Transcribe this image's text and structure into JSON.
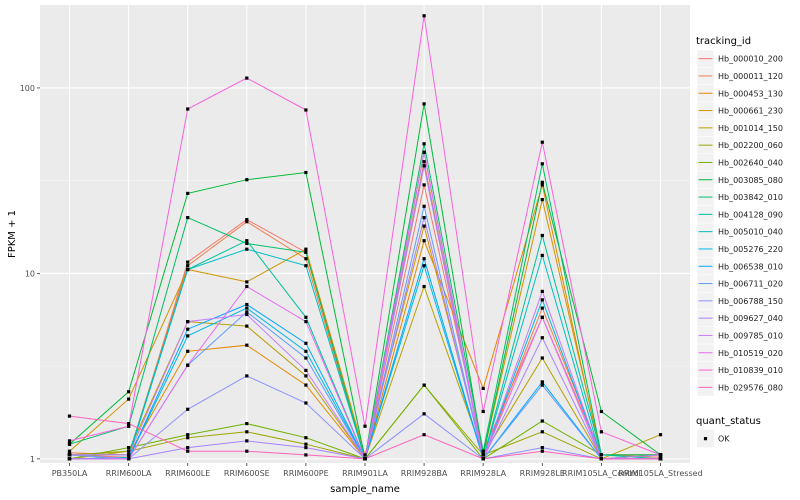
{
  "chart_data": {
    "type": "line",
    "xlabel": "sample_name",
    "ylabel": "FPKM + 1",
    "y_scale": "log10",
    "ylim": [
      0.95,
      280
    ],
    "y_ticks": [
      1,
      10,
      100
    ],
    "grid": true,
    "legend_position": "right",
    "categories": [
      "PB350LA",
      "RRIM600LA",
      "RRIM600LE",
      "RRIM600SE",
      "RRIM600PE",
      "RRIM901LA",
      "RRIM928BA",
      "RRIM928LA",
      "RRIM928LE",
      "RRIM105LA_Control",
      "RRIM105LA_Stressed"
    ],
    "series": [
      {
        "name": "Hb_000010_200",
        "color": "#F8766D",
        "values": [
          1.05,
          1.02,
          11.5,
          19.5,
          13.0,
          1.0,
          30.0,
          1.1,
          5.8,
          1.05,
          1.02
        ]
      },
      {
        "name": "Hb_000011_120",
        "color": "#EF7F49",
        "values": [
          1.08,
          1.05,
          11.0,
          19.0,
          12.0,
          1.0,
          40.0,
          1.0,
          6.5,
          1.05,
          1.05
        ]
      },
      {
        "name": "Hb_000453_130",
        "color": "#E58700",
        "values": [
          1.05,
          1.05,
          3.8,
          4.1,
          2.5,
          1.0,
          15.0,
          2.4,
          30.0,
          1.0,
          1.05
        ]
      },
      {
        "name": "Hb_000661_230",
        "color": "#D19400",
        "values": [
          1.1,
          2.1,
          10.5,
          9.0,
          13.5,
          1.05,
          18.0,
          1.05,
          25.0,
          1.05,
          1.05
        ]
      },
      {
        "name": "Hb_001014_150",
        "color": "#B79F00",
        "values": [
          1.0,
          1.1,
          5.5,
          5.2,
          2.8,
          1.0,
          8.5,
          1.05,
          3.5,
          1.0,
          1.35
        ]
      },
      {
        "name": "Hb_002200_060",
        "color": "#9DA700",
        "values": [
          1.05,
          1.1,
          1.3,
          1.4,
          1.2,
          1.0,
          2.5,
          1.05,
          1.4,
          1.0,
          1.05
        ]
      },
      {
        "name": "Hb_002640_040",
        "color": "#6FB000",
        "values": [
          1.0,
          1.15,
          1.35,
          1.55,
          1.3,
          1.0,
          2.5,
          1.0,
          1.6,
          1.05,
          1.05
        ]
      },
      {
        "name": "Hb_003085_080",
        "color": "#00BA38",
        "values": [
          1.2,
          2.3,
          27.0,
          32.0,
          35.0,
          1.0,
          82.0,
          1.05,
          31.0,
          1.8,
          1.05
        ]
      },
      {
        "name": "Hb_003842_010",
        "color": "#00BE67",
        "values": [
          1.2,
          1.5,
          20.0,
          14.5,
          13.0,
          1.0,
          50.0,
          1.1,
          39.0,
          1.05,
          1.05
        ]
      },
      {
        "name": "Hb_004128_090",
        "color": "#00C19A",
        "values": [
          1.05,
          1.05,
          10.5,
          15.0,
          5.8,
          1.0,
          45.0,
          1.0,
          16.0,
          1.05,
          1.0
        ]
      },
      {
        "name": "Hb_005010_040",
        "color": "#00BFC4",
        "values": [
          1.0,
          1.02,
          10.5,
          13.5,
          11.0,
          1.0,
          38.0,
          1.0,
          12.5,
          1.0,
          1.0
        ]
      },
      {
        "name": "Hb_005276_220",
        "color": "#00B8E7",
        "values": [
          1.05,
          1.0,
          4.6,
          6.5,
          3.8,
          1.0,
          11.0,
          1.0,
          7.2,
          1.0,
          1.0
        ]
      },
      {
        "name": "Hb_006538_010",
        "color": "#00A9FF",
        "values": [
          1.0,
          1.0,
          5.0,
          6.8,
          4.2,
          1.0,
          12.0,
          1.0,
          2.6,
          1.0,
          1.0
        ]
      },
      {
        "name": "Hb_006711_020",
        "color": "#619CFF",
        "values": [
          1.05,
          1.0,
          3.2,
          6.2,
          3.5,
          1.0,
          23.0,
          1.0,
          2.5,
          1.0,
          1.0
        ]
      },
      {
        "name": "Hb_006788_150",
        "color": "#8F91FF",
        "values": [
          1.05,
          1.0,
          1.85,
          2.8,
          2.0,
          1.0,
          1.75,
          1.0,
          1.15,
          1.0,
          1.0
        ]
      },
      {
        "name": "Hb_009627_040",
        "color": "#AB82FF",
        "values": [
          1.0,
          1.0,
          1.15,
          1.25,
          1.15,
          1.0,
          20.0,
          1.0,
          4.5,
          1.0,
          1.05
        ]
      },
      {
        "name": "Hb_009785_010",
        "color": "#C77CFF",
        "values": [
          1.05,
          1.05,
          5.5,
          6.0,
          3.0,
          1.0,
          38.0,
          1.0,
          8.0,
          1.0,
          1.0
        ]
      },
      {
        "name": "Hb_010519_020",
        "color": "#E76BF3",
        "values": [
          1.0,
          1.0,
          3.2,
          8.5,
          5.5,
          1.0,
          45.0,
          1.0,
          5.8,
          1.0,
          1.0
        ]
      },
      {
        "name": "Hb_010839_010",
        "color": "#FA62DB",
        "values": [
          1.25,
          1.5,
          77.0,
          113.0,
          76.0,
          1.5,
          245.0,
          1.8,
          51.0,
          1.4,
          1.05
        ]
      },
      {
        "name": "Hb_029576_080",
        "color": "#FF62BC",
        "values": [
          1.7,
          1.55,
          1.1,
          1.1,
          1.05,
          1.0,
          1.35,
          1.0,
          1.1,
          1.0,
          1.0
        ]
      }
    ],
    "extra_legend": {
      "title": "quant_status",
      "entries": [
        "OK"
      ]
    }
  },
  "legend": {
    "title": "tracking_id"
  }
}
